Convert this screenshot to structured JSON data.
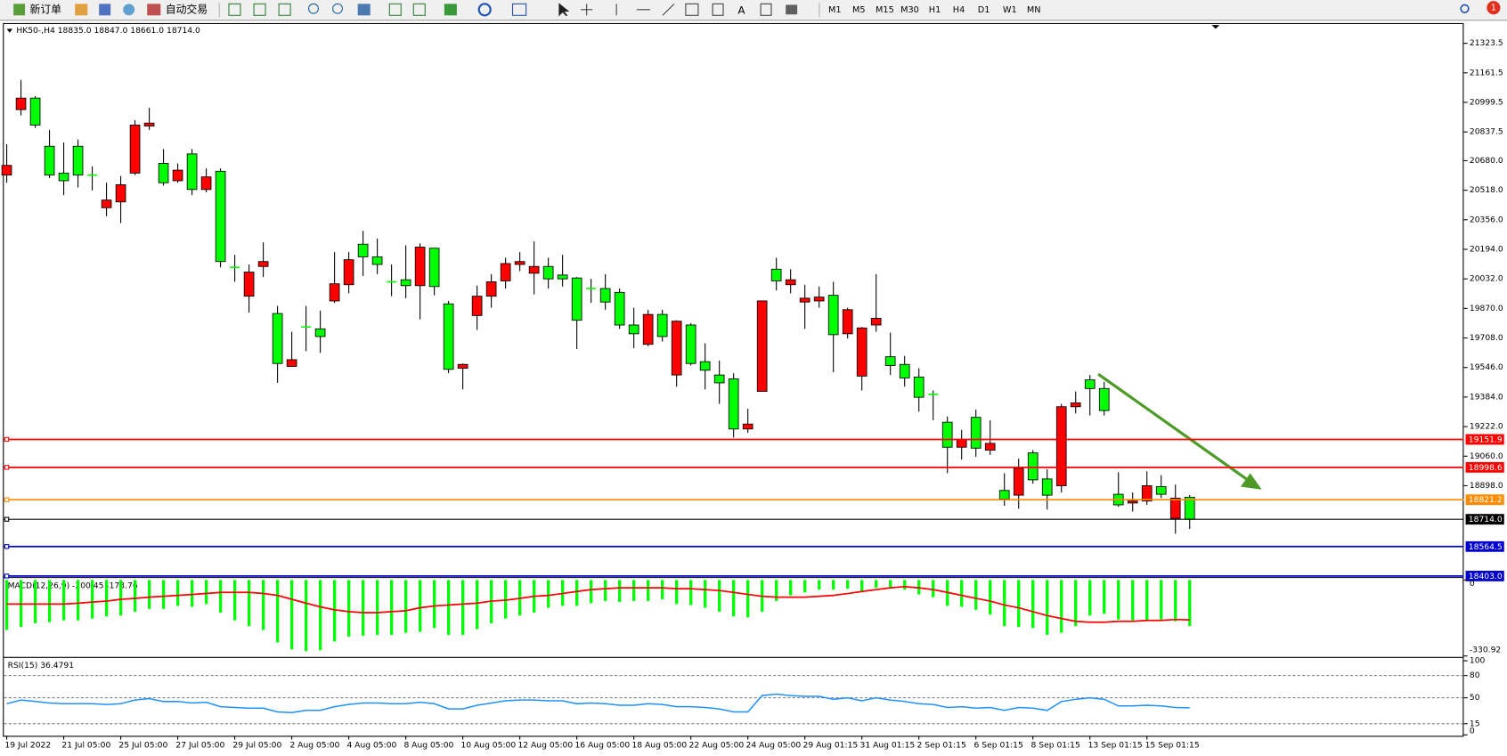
{
  "toolbar": {
    "new_order": "新订单",
    "auto_trading": "自动交易",
    "text_tool": "A",
    "timeframes": [
      "M1",
      "M5",
      "M15",
      "M30",
      "H1",
      "H4",
      "D1",
      "W1",
      "MN"
    ],
    "badge": "1"
  },
  "chart_data": [
    {
      "type": "candlestick",
      "title": "HK50-,H4  18835.0 18847.0 18661.0 18714.0",
      "categories": [
        "19 Jul 2022",
        null,
        null,
        null,
        "21 Jul 05:00",
        null,
        null,
        null,
        "25 Jul 05:00",
        null,
        null,
        null,
        "27 Jul 05:00",
        null,
        null,
        null,
        "29 Jul 05:00",
        null,
        null,
        null,
        "2 Aug 05:00",
        null,
        null,
        null,
        "4 Aug 05:00",
        null,
        null,
        null,
        "8 Aug 05:00",
        null,
        null,
        null,
        "10 Aug 05:00",
        null,
        null,
        null,
        "12 Aug 05:00",
        null,
        null,
        null,
        "16 Aug 05:00",
        null,
        null,
        null,
        "18 Aug 05:00",
        null,
        null,
        null,
        "22 Aug 05:00",
        null,
        null,
        null,
        "24 Aug 05:00",
        null,
        null,
        null,
        "29 Aug 01:15",
        null,
        null,
        null,
        "31 Aug 01:15",
        null,
        null,
        null,
        "2 Sep 01:15",
        null,
        null,
        null,
        "6 Sep 01:15",
        null,
        null,
        null,
        "8 Sep 01:15",
        null,
        null,
        null,
        "13 Sep 01:15",
        null,
        null,
        null,
        "15 Sep 01:15",
        null,
        null,
        null
      ],
      "open": [
        20601,
        20960,
        21023,
        20759,
        20612,
        20759,
        20601,
        20422,
        20454,
        20612,
        20870,
        20665,
        20570,
        20717,
        20522,
        20622,
        20095,
        19937,
        20100,
        19842,
        19552,
        19768,
        19758,
        19911,
        20000,
        20222,
        20153,
        20016,
        20027,
        19995,
        20200,
        19895,
        19542,
        19831,
        19937,
        20021,
        20111,
        20063,
        20100,
        20053,
        20037,
        19979,
        19979,
        19958,
        19779,
        19673,
        19837,
        19505,
        19779,
        19578,
        19505,
        19484,
        19209,
        19415,
        20085,
        20000,
        19905,
        19911,
        19942,
        19731,
        19499,
        19779,
        19605,
        19563,
        19494,
        19399,
        19246,
        19109,
        19273,
        19093,
        18872,
        18846,
        19078,
        18935,
        18898,
        19331,
        19478,
        19431,
        18851,
        18803,
        18814,
        18893,
        18719,
        18835
      ],
      "high": [
        20770,
        21123,
        21034,
        20849,
        20780,
        20796,
        20649,
        20559,
        20596,
        20902,
        20970,
        20744,
        20665,
        20744,
        20638,
        20638,
        20164,
        20111,
        20232,
        19884,
        19742,
        19884,
        19858,
        20179,
        20179,
        20295,
        20253,
        20111,
        20216,
        20227,
        20200,
        19911,
        19568,
        19995,
        20058,
        20148,
        20179,
        20237,
        20148,
        20164,
        20042,
        20032,
        20058,
        19979,
        19874,
        19863,
        19863,
        19805,
        19789,
        19679,
        19584,
        19515,
        19320,
        19911,
        20148,
        20085,
        20000,
        19990,
        20016,
        19874,
        19768,
        20058,
        19737,
        19610,
        19542,
        19420,
        19278,
        19204,
        19315,
        19257,
        18967,
        19046,
        19093,
        18988,
        19347,
        19415,
        19505,
        19468,
        18972,
        18861,
        18977,
        18956,
        18904,
        18847
      ],
      "low": [
        20559,
        20928,
        20860,
        20585,
        20491,
        20533,
        20517,
        20375,
        20338,
        20601,
        20849,
        20543,
        20559,
        20491,
        20506,
        20095,
        20016,
        19847,
        20042,
        19462,
        19552,
        19636,
        19626,
        19900,
        19953,
        20048,
        20058,
        19937,
        19926,
        19810,
        19942,
        19515,
        19426,
        19752,
        19874,
        19979,
        20074,
        19947,
        19979,
        19990,
        19647,
        19900,
        19863,
        19758,
        19652,
        19663,
        19689,
        19441,
        19557,
        19426,
        19347,
        19162,
        19188,
        19415,
        19969,
        19953,
        19758,
        19874,
        19520,
        19705,
        19420,
        19742,
        19505,
        19441,
        19304,
        19257,
        18967,
        19041,
        19057,
        19067,
        18788,
        18772,
        18909,
        18767,
        18861,
        19294,
        19283,
        19283,
        18782,
        18756,
        18793,
        18830,
        18635,
        18661
      ],
      "close": [
        20654,
        21023,
        20875,
        20601,
        20570,
        20601,
        20601,
        20464,
        20548,
        20875,
        20886,
        20559,
        20628,
        20522,
        20591,
        20127,
        20095,
        20069,
        20127,
        19568,
        19589,
        19768,
        19716,
        20005,
        20137,
        20153,
        20111,
        20016,
        19995,
        20206,
        19990,
        19536,
        19563,
        19937,
        20016,
        20116,
        20127,
        20100,
        20032,
        20032,
        19805,
        19979,
        19905,
        19779,
        19731,
        19837,
        19716,
        19800,
        19568,
        19531,
        19462,
        19209,
        19236,
        19911,
        20021,
        20027,
        19926,
        19932,
        19726,
        19863,
        19763,
        19816,
        19557,
        19489,
        19383,
        19399,
        19109,
        19151,
        19104,
        19130,
        18825,
        18993,
        18930,
        18846,
        19331,
        19352,
        19431,
        19310,
        18793,
        18814,
        18898,
        18851,
        18830,
        18714
      ],
      "up_color": "#ff0000",
      "down_color": "#00ff00",
      "ylim": [
        18397,
        21429
      ],
      "yticks": [
        21323.5,
        21161.5,
        20999.5,
        20837.5,
        {
          "value": 20680,
          "label": "20680.0"
        },
        {
          "value": 20518,
          "label": "20518.0"
        },
        {
          "value": 20356,
          "label": "20356.0"
        },
        {
          "value": 20194,
          "label": "20194.0"
        },
        {
          "value": 20032,
          "label": "20032.0"
        },
        {
          "value": 19870,
          "label": "19870.0"
        },
        {
          "value": 19708,
          "label": "19708.0"
        },
        {
          "value": 19546,
          "label": "19546.0"
        },
        {
          "value": 19384,
          "label": "19384.0"
        },
        {
          "value": 19222,
          "label": "19222.0"
        },
        {
          "value": 19060,
          "label": "19060.0"
        },
        {
          "value": 18898,
          "label": "18898.0"
        }
      ],
      "price_lines": [
        {
          "value": 19151.9,
          "label": "19151.9",
          "color": "#ff0000"
        },
        {
          "value": 18998.6,
          "label": "18998.6",
          "color": "#ff0000"
        },
        {
          "value": 18821.2,
          "label": "18821.2",
          "color": "#ff8c00"
        },
        {
          "value": 18714,
          "label": "18714.0",
          "color": "#000000"
        },
        {
          "value": 18564.5,
          "label": "18564.5",
          "color": "#0000cd"
        },
        {
          "value": 18403,
          "label": "18403.0",
          "color": "#0000cd"
        }
      ]
    },
    {
      "type": "macd",
      "title": "MACD(12,26,9) -200.45 -173.76",
      "histogram": [
        -218,
        -205,
        -189,
        -184,
        -176,
        -176,
        -168,
        -159,
        -155,
        -138,
        -126,
        -126,
        -113,
        -117,
        -105,
        -142,
        -176,
        -201,
        -218,
        -272,
        -302,
        -310,
        -306,
        -268,
        -247,
        -243,
        -239,
        -239,
        -230,
        -226,
        -209,
        -239,
        -239,
        -214,
        -189,
        -168,
        -155,
        -142,
        -121,
        -113,
        -113,
        -101,
        -92,
        -96,
        -92,
        -92,
        -84,
        -105,
        -109,
        -121,
        -138,
        -159,
        -163,
        -138,
        -92,
        -67,
        -54,
        -42,
        -42,
        -38,
        -50,
        -34,
        -38,
        -42,
        -63,
        -75,
        -113,
        -117,
        -130,
        -151,
        -201,
        -205,
        -209,
        -239,
        -230,
        -201,
        -155,
        -147,
        -172,
        -176,
        -176,
        -172,
        -180,
        -200.45
      ],
      "signal": [
        -105,
        -105,
        -105,
        -105,
        -105,
        -101,
        -96,
        -92,
        -84,
        -80,
        -75,
        -71,
        -67,
        -63,
        -59,
        -54,
        -54,
        -54,
        -59,
        -67,
        -84,
        -101,
        -117,
        -130,
        -138,
        -142,
        -142,
        -138,
        -134,
        -121,
        -113,
        -109,
        -105,
        -101,
        -92,
        -88,
        -80,
        -71,
        -67,
        -59,
        -50,
        -42,
        -38,
        -34,
        -34,
        -34,
        -34,
        -38,
        -38,
        -42,
        -46,
        -54,
        -63,
        -71,
        -75,
        -75,
        -75,
        -71,
        -67,
        -59,
        -50,
        -42,
        -34,
        -29,
        -34,
        -42,
        -54,
        -67,
        -80,
        -92,
        -109,
        -121,
        -138,
        -155,
        -168,
        -180,
        -184,
        -184,
        -180,
        -180,
        -176,
        -176,
        -172,
        -173.76
      ],
      "histogram_color": "#00ff00",
      "signal_color": "#ff0000",
      "ylim": [
        -330.92,
        0
      ],
      "yticks": [
        0,
        -330.92
      ]
    },
    {
      "type": "line",
      "title": "RSI(15) 36.4791",
      "values": [
        42,
        47,
        45,
        43,
        42,
        42,
        42,
        41,
        42,
        47,
        49,
        45,
        45,
        43,
        44,
        38,
        37,
        36,
        36,
        31,
        30,
        33,
        33,
        38,
        41,
        43,
        43,
        42,
        42,
        44,
        42,
        35,
        35,
        40,
        43,
        46,
        47,
        47,
        46,
        46,
        42,
        43,
        42,
        40,
        40,
        42,
        41,
        38,
        38,
        37,
        35,
        31,
        31,
        53,
        55,
        53,
        52,
        52,
        48,
        50,
        46,
        50,
        47,
        45,
        42,
        41,
        37,
        38,
        36,
        37,
        33,
        37,
        36,
        33,
        45,
        48,
        50,
        48,
        39,
        39,
        40,
        39,
        37,
        36.4791
      ],
      "color": "#1e90ff",
      "ylim": [
        0,
        100
      ],
      "yticks": [
        100,
        80,
        50,
        15,
        0
      ],
      "levels": [
        80,
        50,
        15
      ]
    }
  ]
}
